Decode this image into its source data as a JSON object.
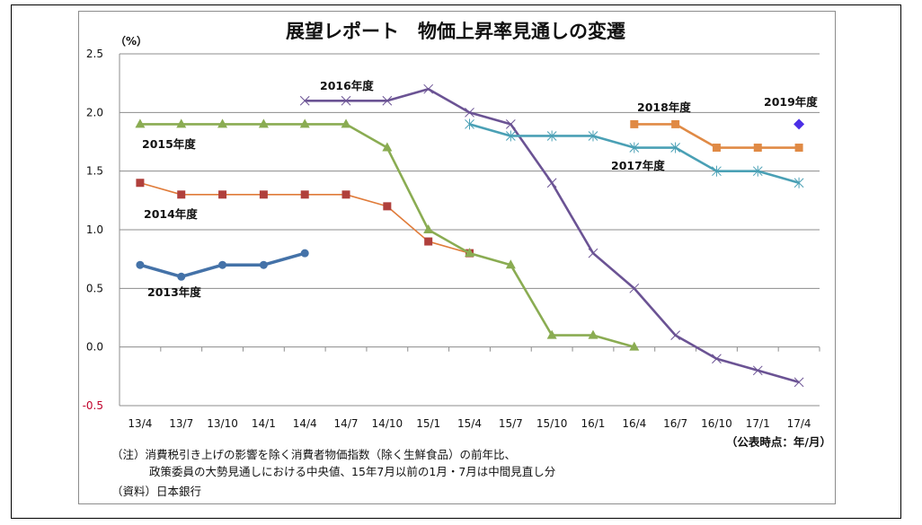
{
  "chart_data": {
    "type": "line",
    "title": "展望レポート　物価上昇率見通しの変遷",
    "ylabel": "（%）",
    "xlabel": "（公表時点：年/月）",
    "ylim": [
      -0.5,
      2.5
    ],
    "yticks": [
      2.5,
      2.0,
      1.5,
      1.0,
      0.5,
      0.0,
      -0.5
    ],
    "ytick_labels": [
      "2.5",
      "2.0",
      "1.5",
      "1.0",
      "0.5",
      "0.0",
      "-0.5"
    ],
    "grid": true,
    "legend": "inline-labels",
    "categories": [
      "13/4",
      "13/7",
      "13/10",
      "14/1",
      "14/4",
      "14/7",
      "14/10",
      "15/1",
      "15/4",
      "15/7",
      "15/10",
      "16/1",
      "16/4",
      "16/7",
      "16/10",
      "17/1",
      "17/4"
    ],
    "series": [
      {
        "name": "2013年度",
        "color": "#4472a8",
        "marker": "circle",
        "start": 0,
        "values": [
          0.7,
          0.6,
          0.7,
          0.7,
          0.8
        ]
      },
      {
        "name": "2014年度",
        "color": "#e07b39",
        "marker_color": "#b0403c",
        "marker": "square",
        "start": 0,
        "values": [
          1.4,
          1.3,
          1.3,
          1.3,
          1.3,
          1.3,
          1.2,
          0.9,
          0.8
        ]
      },
      {
        "name": "2015年度",
        "color": "#8aac52",
        "marker": "triangle",
        "start": 0,
        "values": [
          1.9,
          1.9,
          1.9,
          1.9,
          1.9,
          1.9,
          1.7,
          1.0,
          0.8,
          0.7,
          0.1,
          0.1,
          0.0
        ]
      },
      {
        "name": "2016年度",
        "color": "#6b5394",
        "marker": "x",
        "start": 4,
        "values": [
          2.1,
          2.1,
          2.1,
          2.2,
          2.0,
          1.9,
          1.4,
          0.8,
          0.5,
          0.1,
          -0.1,
          -0.2,
          -0.3
        ]
      },
      {
        "name": "2017年度",
        "color": "#4aa0b5",
        "marker": "star",
        "start": 8,
        "values": [
          1.9,
          1.8,
          1.8,
          1.8,
          1.7,
          1.7,
          1.5,
          1.5,
          1.4
        ]
      },
      {
        "name": "2018年度",
        "color": "#e08a45",
        "marker": "square",
        "start": 12,
        "values": [
          1.9,
          1.9,
          1.7,
          1.7,
          1.7
        ]
      },
      {
        "name": "2019年度",
        "color": "#4b2ee6",
        "marker": "diamond",
        "start": 16,
        "values": [
          1.9
        ]
      }
    ],
    "series_labels": [
      {
        "text": "2013年度",
        "series": "2013年度"
      },
      {
        "text": "2014年度",
        "series": "2014年度"
      },
      {
        "text": "2015年度",
        "series": "2015年度"
      },
      {
        "text": "2016年度",
        "series": "2016年度"
      },
      {
        "text": "2017年度",
        "series": "2017年度"
      },
      {
        "text": "2018年度",
        "series": "2018年度"
      },
      {
        "text": "2019年度",
        "series": "2019年度"
      }
    ]
  },
  "notes": {
    "line1": "（注）消費税引き上げの影響を除く消費者物価指数（除く生鮮食品）の前年比、",
    "line2": "政策委員の大勢見通しにおける中央値、15年7月以前の1月・7月は中間見直し分",
    "source": "（資料）日本銀行"
  }
}
